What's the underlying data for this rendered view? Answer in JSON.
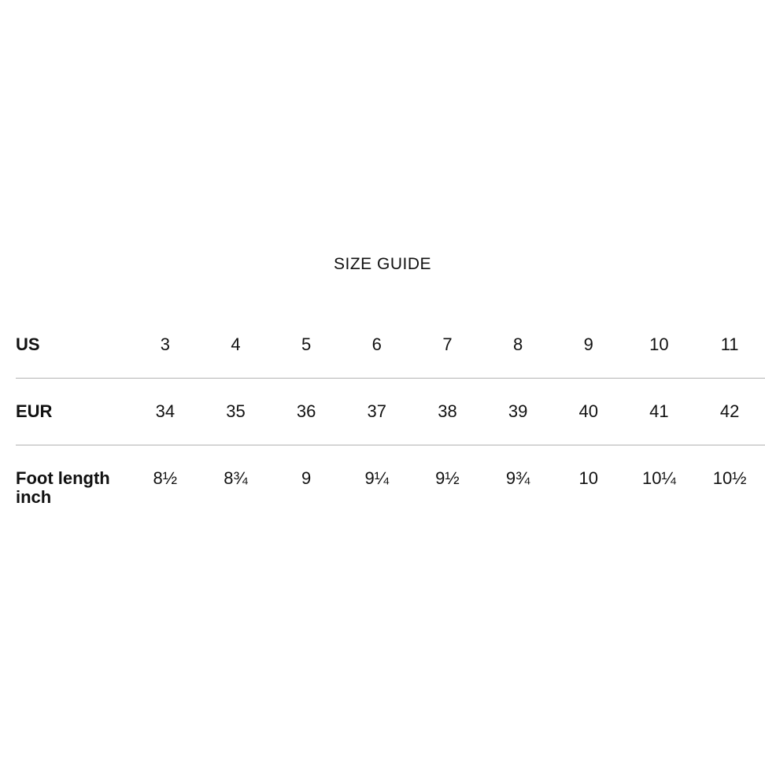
{
  "size_guide": {
    "title": "SIZE GUIDE",
    "colors": {
      "background": "#ffffff",
      "text": "#111111",
      "divider": "#b3b3b3"
    },
    "table": {
      "rows": [
        {
          "label": "US",
          "values": [
            "3",
            "4",
            "5",
            "6",
            "7",
            "8",
            "9",
            "10",
            "11"
          ]
        },
        {
          "label": "EUR",
          "values": [
            "34",
            "35",
            "36",
            "37",
            "38",
            "39",
            "40",
            "41",
            "42"
          ]
        },
        {
          "label": "Foot length inch",
          "values": [
            "8½",
            "8¾",
            "9",
            "9¼",
            "9½",
            "9¾",
            "10",
            "10¼",
            "10½"
          ]
        }
      ]
    }
  }
}
